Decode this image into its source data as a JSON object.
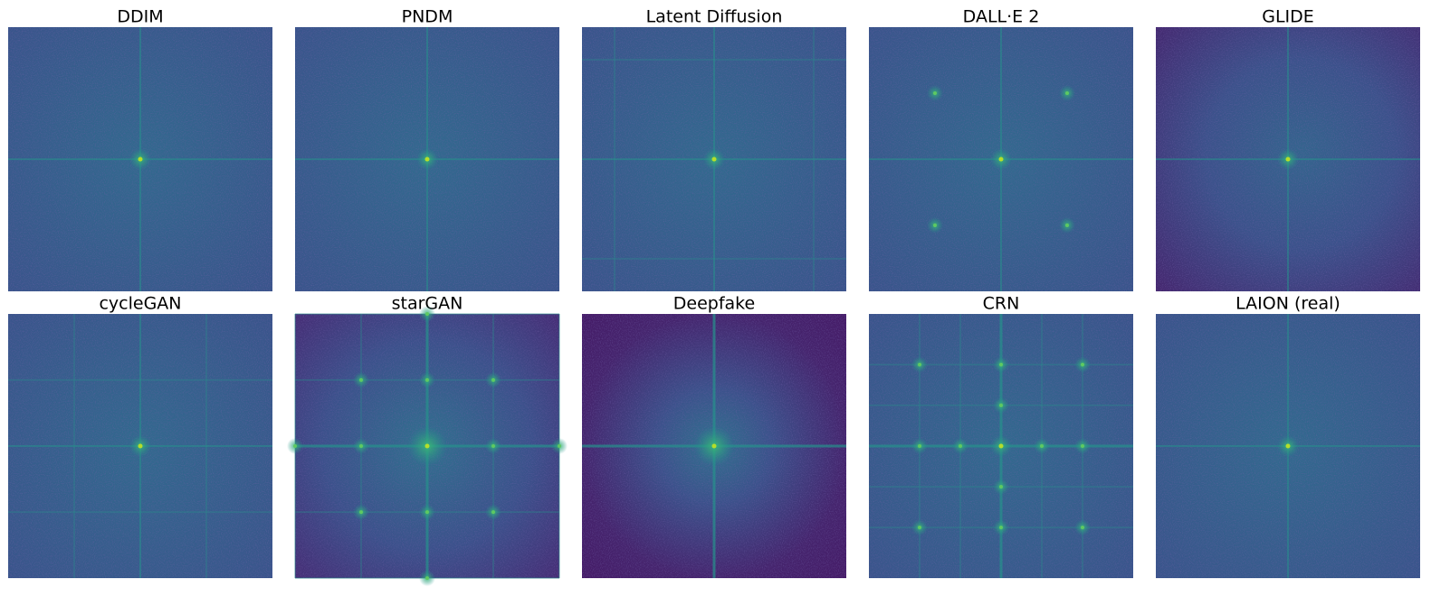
{
  "panels": [
    {
      "title": "DDIM"
    },
    {
      "title": "PNDM"
    },
    {
      "title": "Latent Diffusion"
    },
    {
      "title": "DALL·E 2"
    },
    {
      "title": "GLIDE"
    },
    {
      "title": "cycleGAN"
    },
    {
      "title": "starGAN"
    },
    {
      "title": "Deepfake"
    },
    {
      "title": "CRN"
    },
    {
      "title": "LAION (real)"
    }
  ]
}
